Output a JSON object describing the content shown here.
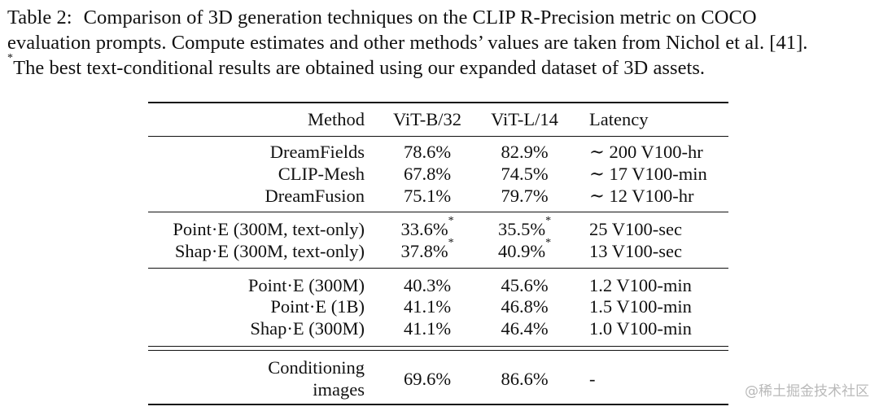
{
  "caption": {
    "label": "Table 2:",
    "line1_text": "Comparison of 3D generation techniques on the CLIP R-Precision metric on COCO",
    "line2_text": "evaluation prompts. Compute estimates and other methods’ values are taken from Nichol et al. [41].",
    "line3_star": "*",
    "line3_text": "The best text-conditional results are obtained using our expanded dataset of 3D assets."
  },
  "table": {
    "headers": {
      "method": "Method",
      "vit_b32": "ViT-B/32",
      "vit_l14": "ViT-L/14",
      "latency": "Latency"
    },
    "rows": [
      {
        "method": "DreamFields",
        "vit_b32": "78.6%",
        "vit_l14": "82.9%",
        "latency": "∼ 200 V100-hr"
      },
      {
        "method": "CLIP-Mesh",
        "vit_b32": "67.8%",
        "vit_l14": "74.5%",
        "latency": "∼ 17 V100-min"
      },
      {
        "method": "DreamFusion",
        "vit_b32": "75.1%",
        "vit_l14": "79.7%",
        "latency": "∼ 12 V100-hr"
      },
      {
        "method": "Point·E (300M, text-only)",
        "vit_b32": "33.6%",
        "vit_b32_mark": "*",
        "vit_l14": "35.5%",
        "vit_l14_mark": "*",
        "latency": "25 V100-sec"
      },
      {
        "method": "Shap·E (300M, text-only)",
        "vit_b32": "37.8%",
        "vit_b32_mark": "*",
        "vit_l14": "40.9%",
        "vit_l14_mark": "*",
        "latency": "13 V100-sec"
      },
      {
        "method": "Point·E (300M)",
        "vit_b32": "40.3%",
        "vit_l14": "45.6%",
        "latency": "1.2 V100-min"
      },
      {
        "method": "Point·E (1B)",
        "vit_b32": "41.1%",
        "vit_l14": "46.8%",
        "latency": "1.5 V100-min"
      },
      {
        "method": "Shap·E (300M)",
        "vit_b32": "41.1%",
        "vit_l14": "46.4%",
        "latency": "1.0 V100-min"
      }
    ],
    "conditioning": {
      "method_line1": "Conditioning",
      "method_line2": "images",
      "vit_b32": "69.6%",
      "vit_l14": "86.6%",
      "latency": "-"
    }
  },
  "watermark": "@稀土掘金技术社区"
}
